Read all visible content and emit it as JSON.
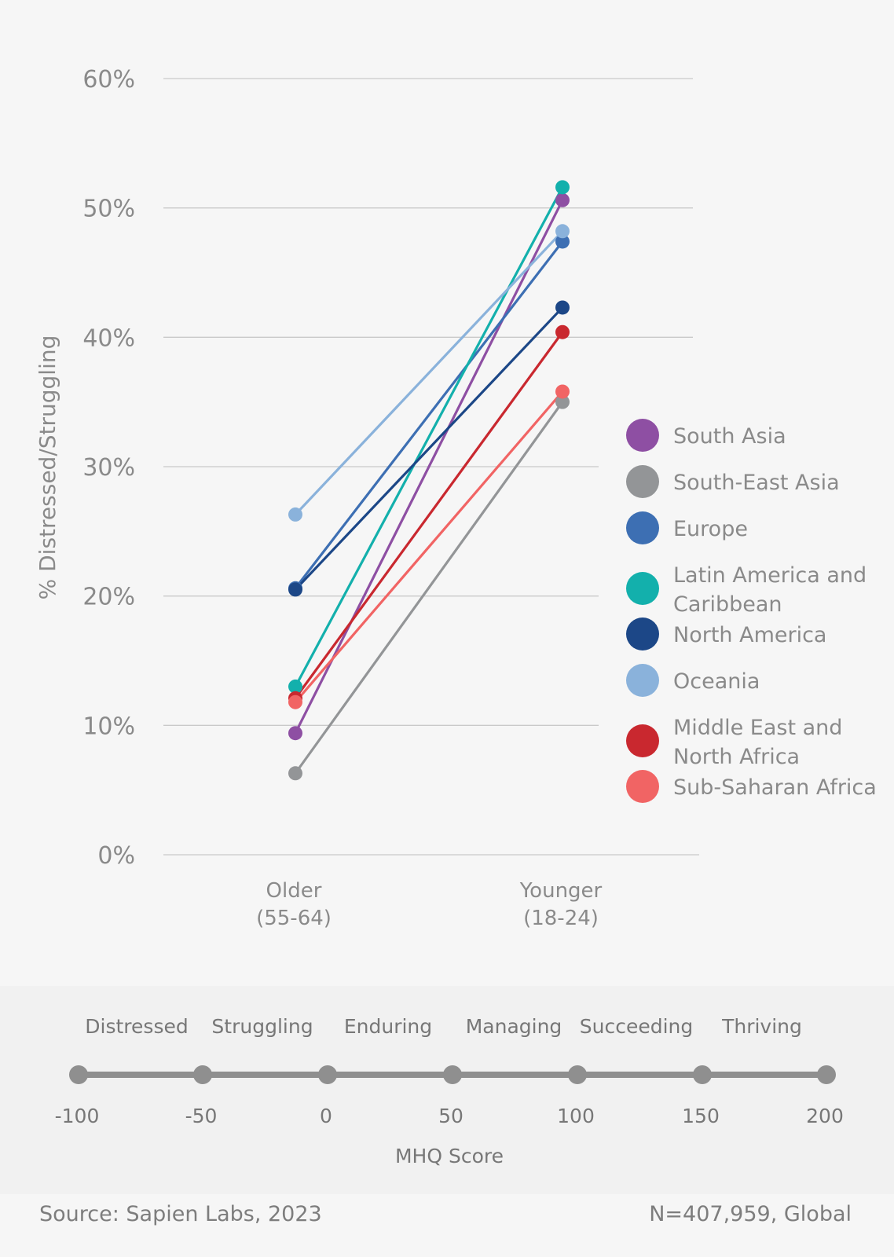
{
  "chart_data": {
    "type": "line",
    "ylabel": "% Distressed/Struggling",
    "ylim": [
      0,
      60
    ],
    "yticks": [
      "0%",
      "10%",
      "20%",
      "30%",
      "40%",
      "50%",
      "60%"
    ],
    "categories": [
      [
        "Older",
        "(55-64)"
      ],
      [
        "Younger",
        "(18-24)"
      ]
    ],
    "series": [
      {
        "name": "South Asia",
        "color": "#8e4fa3",
        "values": [
          9.4,
          50.6
        ]
      },
      {
        "name": "South-East Asia",
        "color": "#939597",
        "values": [
          6.3,
          35.0
        ]
      },
      {
        "name": "Europe",
        "color": "#3d6fb3",
        "values": [
          20.6,
          47.4
        ]
      },
      {
        "name": "Latin America and Caribbean",
        "color": "#13b0ac",
        "values": [
          13.0,
          51.6
        ]
      },
      {
        "name": "North America",
        "color": "#1c4787",
        "values": [
          20.5,
          42.3
        ]
      },
      {
        "name": "Oceania",
        "color": "#8ab2db",
        "values": [
          26.3,
          48.2
        ]
      },
      {
        "name": "Middle East and North Africa",
        "color": "#c9282f",
        "values": [
          12.1,
          40.4
        ]
      },
      {
        "name": "Sub-Saharan Africa",
        "color": "#f16464",
        "values": [
          11.8,
          35.8
        ]
      }
    ],
    "legend": {
      "position": "right"
    },
    "grid": true
  },
  "scale": {
    "categories": [
      "Distressed",
      "Struggling",
      "Enduring",
      "Managing",
      "Succeeding",
      "Thriving"
    ],
    "ticks": [
      "-100",
      "-50",
      "0",
      "50",
      "100",
      "150",
      "200"
    ],
    "title": "MHQ Score"
  },
  "footer": {
    "source": "Source: Sapien Labs, 2023",
    "sample": "N=407,959, Global"
  }
}
